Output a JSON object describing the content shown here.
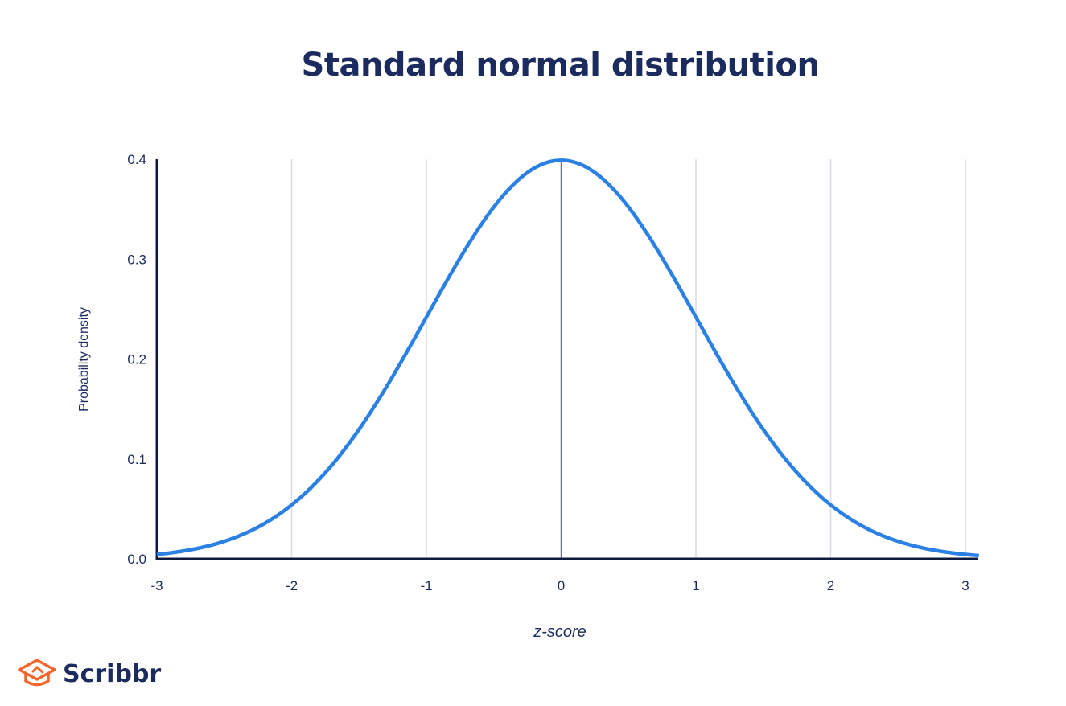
{
  "colors": {
    "navy": "#1b2b5e",
    "curve": "#2b80e3",
    "grid": "#d7dce6",
    "axis": "#0f1b3d",
    "brand_orange": "#f1662d"
  },
  "chart_data": {
    "type": "line",
    "title": "Standard normal distribution",
    "xlabel": "z-score",
    "ylabel": "Probability density",
    "xlim": [
      -3,
      3
    ],
    "ylim": [
      0,
      0.4
    ],
    "x_ticks": [
      "-3",
      "-2",
      "-1",
      "0",
      "1",
      "2",
      "3"
    ],
    "y_ticks": [
      "0.0",
      "0.1",
      "0.2",
      "0.3",
      "0.4"
    ],
    "grid": "vertical",
    "series": [
      {
        "x": [
          -3,
          -2.5,
          -2,
          -1.5,
          -1,
          -0.5,
          0,
          0.5,
          1,
          1.5,
          2,
          2.5,
          3
        ],
        "values": [
          0.004,
          0.018,
          0.054,
          0.13,
          0.242,
          0.352,
          0.399,
          0.352,
          0.242,
          0.13,
          0.054,
          0.018,
          0.004
        ]
      }
    ]
  },
  "logo": {
    "text": "Scribbr",
    "icon": "graduation-cap-icon"
  }
}
